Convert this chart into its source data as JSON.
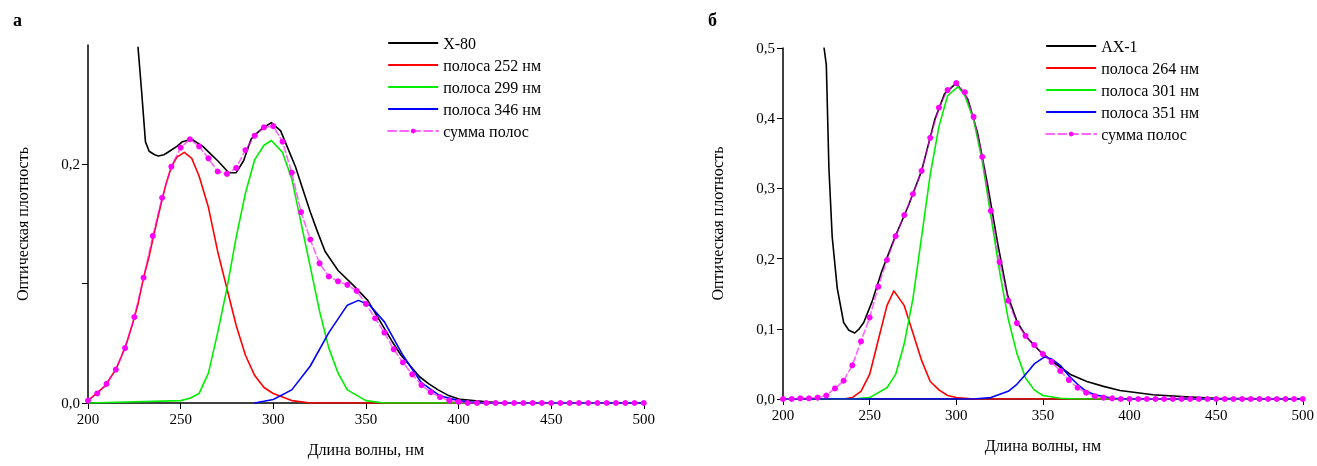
{
  "chart_data": [
    {
      "type": "line",
      "title": "а",
      "xlabel": "Длина волны, нм",
      "ylabel": "Оптическая плотность",
      "xlim": [
        200,
        500
      ],
      "xticks": [
        200,
        250,
        300,
        350,
        400,
        450,
        500
      ],
      "ylim": [
        0,
        0.3
      ],
      "yticks": [
        {
          "value": 0,
          "label": "0,0"
        },
        {
          "value": 0.1,
          "label": null
        },
        {
          "value": 0.2,
          "label": "0,2"
        }
      ],
      "legend": "top right",
      "series": [
        {
          "name": "X-80",
          "color": "#000000",
          "x": [
            227,
            229,
            231,
            233,
            236,
            238,
            241,
            244,
            248,
            251,
            256,
            262,
            266,
            270,
            276,
            280,
            284,
            288,
            291,
            294,
            299,
            304,
            308,
            312,
            316,
            320,
            324,
            328,
            335,
            343,
            351,
            359,
            364,
            369,
            374,
            379,
            384,
            389,
            395,
            401,
            408,
            415,
            425
          ],
          "values": [
            0.298,
            0.26,
            0.219,
            0.211,
            0.208,
            0.207,
            0.208,
            0.211,
            0.215,
            0.219,
            0.221,
            0.215,
            0.209,
            0.203,
            0.193,
            0.193,
            0.203,
            0.221,
            0.226,
            0.23,
            0.235,
            0.228,
            0.213,
            0.198,
            0.179,
            0.16,
            0.143,
            0.127,
            0.111,
            0.099,
            0.086,
            0.065,
            0.052,
            0.04,
            0.031,
            0.022,
            0.016,
            0.011,
            0.006,
            0.003,
            0.002,
            0.001,
            0
          ]
        },
        {
          "name": "полоса 252 нм",
          "color": "#ff0000",
          "x": [
            200,
            203,
            209,
            215,
            218,
            221,
            224,
            227,
            230,
            233,
            236,
            239,
            242,
            245,
            248,
            252,
            256,
            260,
            265,
            270,
            275,
            280,
            285,
            290,
            295,
            300,
            310,
            320,
            500
          ],
          "values": [
            0.002,
            0.006,
            0.014,
            0.028,
            0.039,
            0.051,
            0.066,
            0.083,
            0.105,
            0.123,
            0.144,
            0.164,
            0.183,
            0.198,
            0.206,
            0.21,
            0.205,
            0.19,
            0.164,
            0.127,
            0.096,
            0.065,
            0.04,
            0.023,
            0.013,
            0.008,
            0.002,
            0,
            0
          ]
        },
        {
          "name": "полоса 299 нм",
          "color": "#00ee00",
          "x": [
            200,
            250,
            255,
            260,
            265,
            270,
            275,
            280,
            285,
            290,
            295,
            299,
            305,
            310,
            315,
            320,
            325,
            330,
            335,
            340,
            350,
            360,
            500
          ],
          "values": [
            0,
            0.002,
            0.004,
            0.008,
            0.025,
            0.059,
            0.096,
            0.139,
            0.176,
            0.204,
            0.216,
            0.22,
            0.21,
            0.188,
            0.151,
            0.114,
            0.077,
            0.046,
            0.025,
            0.011,
            0.002,
            0,
            0
          ]
        },
        {
          "name": "полоса 346 нм",
          "color": "#0000ff",
          "x": [
            290,
            300,
            310,
            320,
            330,
            340,
            346,
            352,
            360,
            370,
            380,
            390,
            400,
            410,
            500
          ],
          "values": [
            0,
            0.003,
            0.011,
            0.031,
            0.059,
            0.082,
            0.086,
            0.082,
            0.068,
            0.04,
            0.017,
            0.006,
            0.002,
            0,
            0
          ]
        },
        {
          "name": "сумма полос",
          "color": "#ff00ff",
          "marker": "circle",
          "line_style": "dashed",
          "x": [
            200,
            205,
            210,
            215,
            220,
            225,
            230,
            235,
            240,
            245,
            250,
            255,
            260,
            265,
            270,
            275,
            280,
            285,
            290,
            295,
            300,
            305,
            310,
            315,
            320,
            325,
            330,
            335,
            340,
            345,
            350,
            355,
            360,
            365,
            370,
            375,
            380,
            385,
            390,
            395,
            400,
            405,
            410,
            415,
            420,
            425,
            430,
            435,
            440,
            445,
            450,
            455,
            460,
            465,
            470,
            475,
            480,
            485,
            490,
            495,
            500
          ],
          "values": [
            0.002,
            0.008,
            0.016,
            0.028,
            0.046,
            0.072,
            0.105,
            0.14,
            0.172,
            0.198,
            0.214,
            0.221,
            0.215,
            0.205,
            0.194,
            0.192,
            0.197,
            0.212,
            0.224,
            0.231,
            0.232,
            0.219,
            0.193,
            0.16,
            0.137,
            0.117,
            0.106,
            0.102,
            0.099,
            0.094,
            0.083,
            0.071,
            0.059,
            0.045,
            0.034,
            0.024,
            0.015,
            0.009,
            0.005,
            0.002,
            0.001,
            0,
            0,
            0,
            0,
            0,
            0,
            0,
            0,
            0,
            0,
            0,
            0,
            0,
            0,
            0,
            0,
            0,
            0,
            0,
            0
          ]
        }
      ]
    },
    {
      "type": "line",
      "title": "б",
      "xlabel": "Длина волны, нм",
      "ylabel": "Оптическая плотность",
      "xlim": [
        200,
        500
      ],
      "xticks": [
        200,
        250,
        300,
        350,
        400,
        450,
        500
      ],
      "ylim": [
        0,
        0.5
      ],
      "yticks": [
        {
          "value": 0,
          "label": "0,0"
        },
        {
          "value": 0.1,
          "label": "0,1"
        },
        {
          "value": 0.2,
          "label": "0,2"
        },
        {
          "value": 0.3,
          "label": "0,3"
        },
        {
          "value": 0.4,
          "label": "0,4"
        },
        {
          "value": 0.5,
          "label": "0,5"
        }
      ],
      "legend": "top right",
      "series": [
        {
          "name": "AX-1",
          "color": "#000000",
          "x": [
            223.7,
            225,
            226.5,
            228.4,
            231.3,
            235,
            238,
            241.4,
            244,
            246.6,
            251.3,
            257,
            264.7,
            272.3,
            280,
            287.6,
            293.3,
            300,
            306.7,
            312.4,
            318.1,
            323.9,
            329.6,
            335.3,
            341,
            348.7,
            356.3,
            365.9,
            375.4,
            385,
            394.5,
            413.6,
            432.7,
            450,
            500
          ],
          "values": [
            0.5,
            0.476,
            0.329,
            0.231,
            0.158,
            0.109,
            0.098,
            0.094,
            0.1,
            0.109,
            0.138,
            0.182,
            0.231,
            0.275,
            0.325,
            0.398,
            0.435,
            0.45,
            0.427,
            0.378,
            0.305,
            0.222,
            0.148,
            0.109,
            0.087,
            0.067,
            0.052,
            0.035,
            0.025,
            0.018,
            0.012,
            0.006,
            0.003,
            0.001,
            0
          ]
        },
        {
          "name": "полоса 264 нм",
          "color": "#ff0000",
          "x": [
            200,
            235,
            240,
            245,
            250,
            255,
            260,
            264,
            270,
            275,
            280,
            285,
            290,
            295,
            300,
            310,
            500
          ],
          "values": [
            0,
            0,
            0.002,
            0.011,
            0.035,
            0.084,
            0.133,
            0.154,
            0.133,
            0.094,
            0.055,
            0.025,
            0.013,
            0.005,
            0.002,
            0,
            0
          ]
        },
        {
          "name": "полоса 301 нм",
          "color": "#00ee00",
          "x": [
            200,
            240,
            250,
            260,
            265,
            270,
            275,
            280,
            285,
            290,
            295,
            301,
            305,
            310,
            315,
            320,
            325,
            330,
            335,
            340,
            345,
            350,
            360,
            370,
            500
          ],
          "values": [
            0,
            0,
            0.002,
            0.016,
            0.035,
            0.079,
            0.143,
            0.231,
            0.32,
            0.388,
            0.432,
            0.445,
            0.432,
            0.398,
            0.339,
            0.261,
            0.182,
            0.114,
            0.065,
            0.03,
            0.013,
            0.005,
            0.001,
            0,
            0
          ]
        },
        {
          "name": "полоса 351 нм",
          "color": "#0000ff",
          "x": [
            200,
            310,
            320,
            330,
            335,
            340,
            345,
            351,
            355,
            360,
            365,
            370,
            375,
            380,
            390,
            400,
            500
          ],
          "values": [
            0,
            0,
            0.002,
            0.011,
            0.021,
            0.035,
            0.05,
            0.06,
            0.057,
            0.048,
            0.033,
            0.021,
            0.011,
            0.006,
            0.001,
            0,
            0
          ]
        },
        {
          "name": "сумма полос",
          "color": "#ff00ff",
          "marker": "circle",
          "line_style": "dashed",
          "x": [
            200,
            205,
            210,
            215,
            220,
            225,
            230,
            235,
            240,
            245,
            250,
            255,
            260,
            265,
            270,
            275,
            280,
            285,
            290,
            295,
            300,
            305,
            310,
            315,
            320,
            325,
            330,
            335,
            340,
            345,
            350,
            355,
            360,
            365,
            370,
            375,
            380,
            385,
            390,
            395,
            400,
            405,
            410,
            415,
            420,
            425,
            430,
            435,
            440,
            445,
            450,
            455,
            460,
            465,
            470,
            475,
            480,
            485,
            490,
            495,
            500
          ],
          "values": [
            0,
            0,
            0.001,
            0.001,
            0.002,
            0.005,
            0.015,
            0.026,
            0.048,
            0.082,
            0.116,
            0.16,
            0.198,
            0.232,
            0.262,
            0.292,
            0.325,
            0.372,
            0.415,
            0.44,
            0.45,
            0.437,
            0.402,
            0.345,
            0.268,
            0.195,
            0.14,
            0.108,
            0.09,
            0.077,
            0.064,
            0.053,
            0.04,
            0.027,
            0.016,
            0.009,
            0.004,
            0.002,
            0.001,
            0,
            0,
            0,
            0,
            0,
            0,
            0,
            0,
            0,
            0,
            0,
            0,
            0,
            0,
            0,
            0,
            0,
            0,
            0,
            0,
            0,
            0
          ]
        }
      ]
    }
  ]
}
